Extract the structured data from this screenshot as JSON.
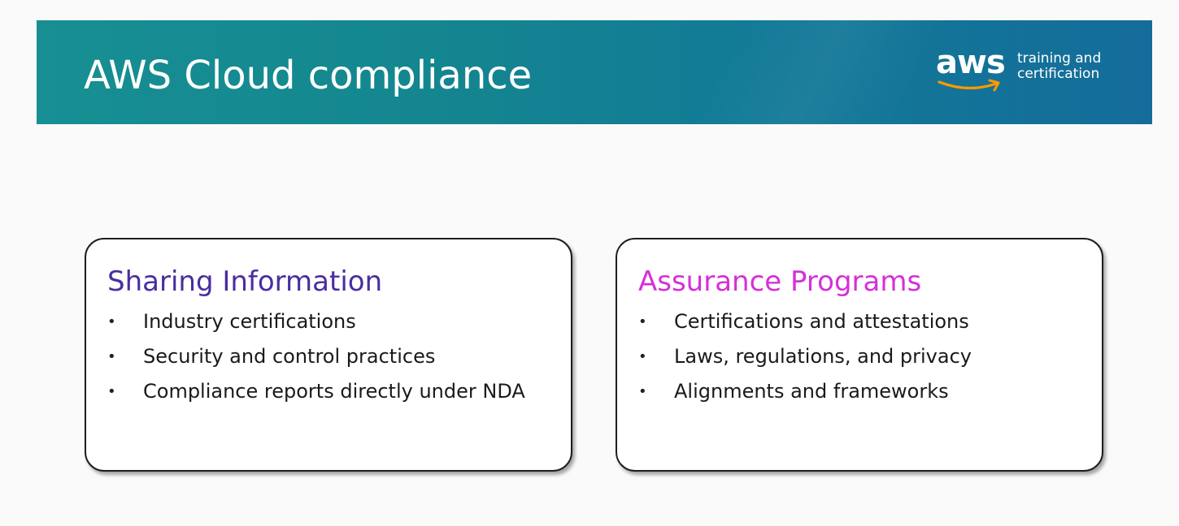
{
  "header": {
    "title": "AWS Cloud compliance",
    "logo": {
      "word": "aws",
      "tagline_line1": "training and",
      "tagline_line2": "certification",
      "smile_color": "#ff9900"
    },
    "banner_color": "#158a92"
  },
  "cards": [
    {
      "heading": "Sharing Information",
      "heading_color": "#4b2da0",
      "bullet": "•",
      "items": [
        "Industry certifications",
        "Security and control practices",
        "Compliance reports directly under NDA"
      ]
    },
    {
      "heading": "Assurance Programs",
      "heading_color": "#d62fd8",
      "bullet": "•",
      "items": [
        "Certifications and attestations",
        "Laws, regulations, and privacy",
        "Alignments and frameworks"
      ]
    }
  ]
}
